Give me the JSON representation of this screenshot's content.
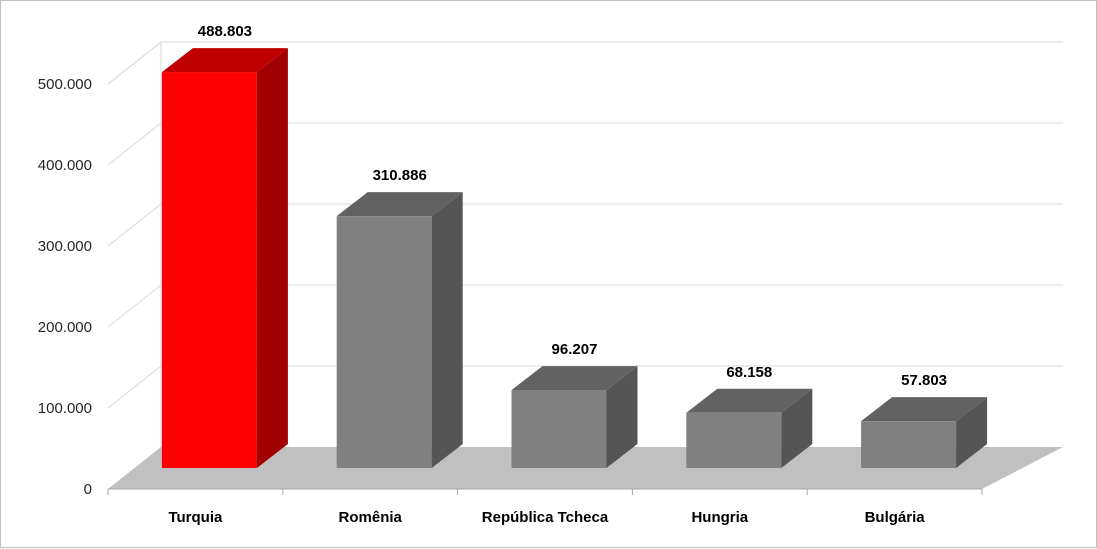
{
  "chart_data": {
    "type": "bar",
    "title": "",
    "xlabel": "",
    "ylabel": "",
    "categories": [
      "Turquia",
      "Romênia",
      "República Tcheca",
      "Hungria",
      "Bulgária"
    ],
    "values": [
      488803,
      310886,
      96207,
      68158,
      57803
    ],
    "value_labels": [
      "488.803",
      "310.886",
      "96.207",
      "68.158",
      "57.803"
    ],
    "yticks": [
      {
        "value": 0,
        "label": "0"
      },
      {
        "value": 100000,
        "label": "100.000"
      },
      {
        "value": 200000,
        "label": "200.000"
      },
      {
        "value": 300000,
        "label": "300.000"
      },
      {
        "value": 400000,
        "label": "400.000"
      },
      {
        "value": 500000,
        "label": "500.000"
      }
    ],
    "ylim": [
      0,
      500000
    ],
    "grid": true,
    "legend": "none",
    "style": "3d-column",
    "highlight_index": 0,
    "colors": {
      "highlight_front": "#ff0000",
      "highlight_top": "#c00000",
      "highlight_side": "#a00000",
      "highlight_label": "#d01010",
      "bar_front": "#808080",
      "bar_top": "#626262",
      "bar_side": "#555555",
      "floor": "#c0c0c0",
      "grid": "#d9d9d9"
    }
  }
}
